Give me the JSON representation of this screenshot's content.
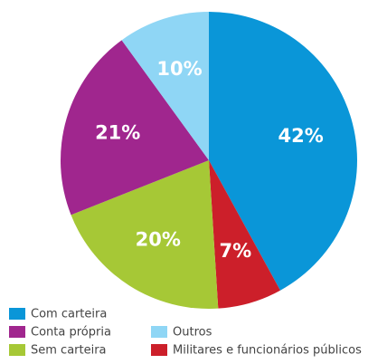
{
  "chart_data": {
    "type": "pie",
    "categories": [
      "Com carteira",
      "Militares e funcionários públicos",
      "Sem carteira",
      "Conta própria",
      "Outros"
    ],
    "values": [
      42,
      7,
      20,
      21,
      10
    ],
    "value_labels": [
      "42%",
      "7%",
      "20%",
      "21%",
      "10%"
    ],
    "colors": [
      "#0a96d8",
      "#cc1f2a",
      "#a6c836",
      "#a0268e",
      "#8fd6f5"
    ],
    "legend": "bottom"
  }
}
